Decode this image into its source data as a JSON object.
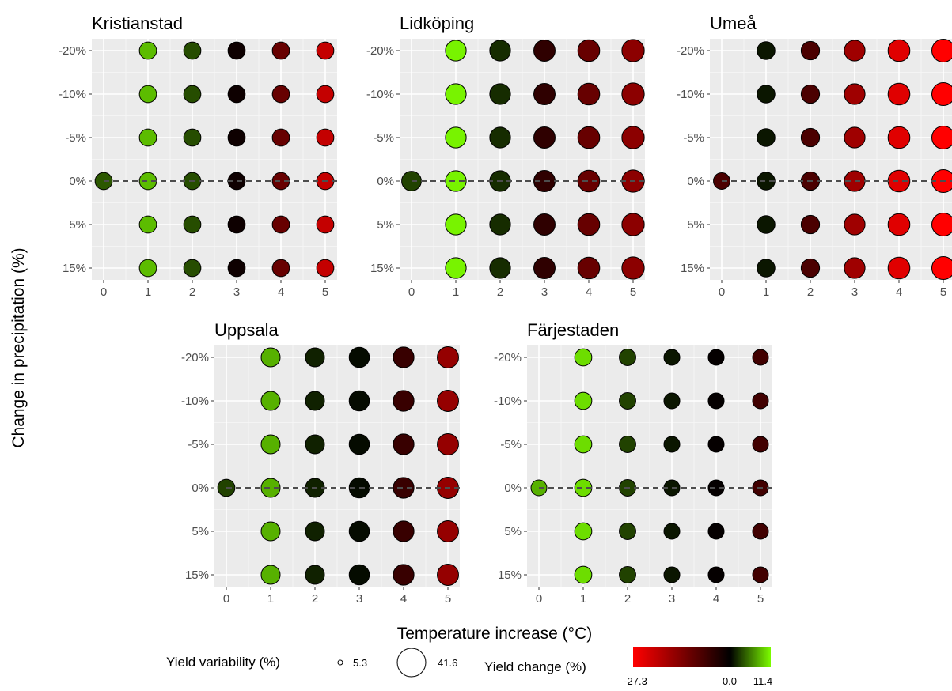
{
  "figure": {
    "xlabel": "Temperature increase (°C)",
    "ylabel": "Change in precipitation (%)"
  },
  "legend": {
    "size": {
      "title": "Yield variability (%)",
      "min_label": "5.3",
      "max_label": "41.6"
    },
    "color": {
      "title": "Yield change (%)",
      "min_label": "-27.3",
      "mid_label": "0.0",
      "max_label": "11.4",
      "low_color": "#ff0000",
      "mid_color": "#000000",
      "high_color": "#7cfc00"
    }
  },
  "chart_data": {
    "type": "scatter",
    "encoding": "Bubble grid: x = temperature increase (°C), y = change in precipitation; fill color = yield change (%), bubble size = yield variability (%)",
    "x_ticks": [
      "0",
      "1",
      "2",
      "3",
      "4",
      "5"
    ],
    "y_ticks": [
      "-20%",
      "-10%",
      "-5%",
      "0%",
      "5%",
      "15%"
    ],
    "reference_line": {
      "y": "0%",
      "style": "dashed"
    },
    "color_scale": {
      "min": -27.3,
      "mid": 0.0,
      "max": 11.4
    },
    "size_scale": {
      "min": 5.3,
      "max": 41.6
    },
    "panels": [
      {
        "title": "Kristianstad",
        "baseline": {
          "x": 0,
          "y": "0%",
          "yield_change": 4.0,
          "variability": 20
        },
        "temp_levels": [
          {
            "x": 1,
            "yield_change": 8.5,
            "variability": 20
          },
          {
            "x": 2,
            "yield_change": 3.5,
            "variability": 20
          },
          {
            "x": 3,
            "yield_change": -1.5,
            "variability": 20
          },
          {
            "x": 4,
            "yield_change": -11.0,
            "variability": 20
          },
          {
            "x": 5,
            "yield_change": -21.0,
            "variability": 20
          }
        ]
      },
      {
        "title": "Lidköping",
        "baseline": {
          "x": 0,
          "y": "0%",
          "yield_change": 3.0,
          "variability": 24
        },
        "temp_levels": [
          {
            "x": 1,
            "yield_change": 11.0,
            "variability": 26
          },
          {
            "x": 2,
            "yield_change": 2.0,
            "variability": 26
          },
          {
            "x": 3,
            "yield_change": -5.0,
            "variability": 27
          },
          {
            "x": 4,
            "yield_change": -11.0,
            "variability": 28
          },
          {
            "x": 5,
            "yield_change": -15.0,
            "variability": 29
          }
        ]
      },
      {
        "title": "Umeå",
        "baseline": {
          "x": 0,
          "y": "0%",
          "yield_change": -8.0,
          "variability": 19
        },
        "temp_levels": [
          {
            "x": 1,
            "yield_change": 1.0,
            "variability": 21
          },
          {
            "x": 2,
            "yield_change": -8.0,
            "variability": 22
          },
          {
            "x": 3,
            "yield_change": -17.0,
            "variability": 26
          },
          {
            "x": 4,
            "yield_change": -24.0,
            "variability": 28
          },
          {
            "x": 5,
            "yield_change": -27.3,
            "variability": 30
          }
        ]
      },
      {
        "title": "Uppsala",
        "baseline": {
          "x": 0,
          "y": "0%",
          "yield_change": 3.0,
          "variability": 20
        },
        "temp_levels": [
          {
            "x": 1,
            "yield_change": 8.0,
            "variability": 23
          },
          {
            "x": 2,
            "yield_change": 1.5,
            "variability": 23
          },
          {
            "x": 3,
            "yield_change": 0.5,
            "variability": 25
          },
          {
            "x": 4,
            "yield_change": -6.0,
            "variability": 26
          },
          {
            "x": 5,
            "yield_change": -16.0,
            "variability": 27
          }
        ]
      },
      {
        "title": "Färjestaden",
        "baseline": {
          "x": 0,
          "y": "0%",
          "yield_change": 8.0,
          "variability": 18
        },
        "temp_levels": [
          {
            "x": 1,
            "yield_change": 10.0,
            "variability": 20
          },
          {
            "x": 2,
            "yield_change": 3.0,
            "variability": 19
          },
          {
            "x": 3,
            "yield_change": 1.0,
            "variability": 18
          },
          {
            "x": 4,
            "yield_change": -0.5,
            "variability": 18
          },
          {
            "x": 5,
            "yield_change": -7.0,
            "variability": 18
          }
        ]
      }
    ]
  }
}
